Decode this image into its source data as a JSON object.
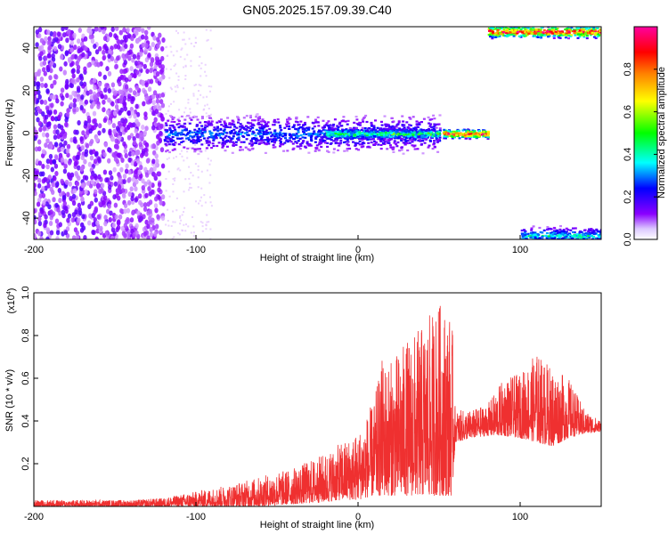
{
  "title": "GN05.2025.157.09.39.C40",
  "chart_data": [
    {
      "type": "heatmap",
      "xlabel": "Height of straight line (km)",
      "ylabel": "Frequency (Hz)",
      "xlim": [
        -200,
        150
      ],
      "ylim": [
        -50,
        50
      ],
      "x_ticks": [
        -200,
        -100,
        0,
        100
      ],
      "y_ticks": [
        -40,
        -20,
        0,
        20,
        40
      ],
      "grid": false,
      "colorbar": {
        "label": "Normalized spectral amplitude",
        "range": [
          0,
          1
        ],
        "ticks": [
          "0.0",
          "0.2",
          "0.4",
          "0.6",
          "0.8"
        ],
        "colormap": [
          "#ffffff",
          "#8a00ff",
          "#0000ff",
          "#00ffff",
          "#00ff00",
          "#ffff00",
          "#ff8000",
          "#ff0000",
          "#ff00a0"
        ]
      },
      "features": [
        {
          "x_range": [
            -200,
            -120
          ],
          "freq_range": [
            -50,
            50
          ],
          "amplitude": 0.12
        },
        {
          "x_range": [
            -120,
            50
          ],
          "freq_center": 0,
          "freq_halfwidth": 6,
          "amplitude": 0.3
        },
        {
          "x_range": [
            -20,
            50
          ],
          "freq_center": 0,
          "freq_halfwidth": 2,
          "amplitude": 0.5
        },
        {
          "x_range": [
            52,
            80
          ],
          "freq_center": 0,
          "freq_halfwidth": 1.5,
          "amplitude": 0.9
        },
        {
          "x_range": [
            80,
            150
          ],
          "freq_center": 48,
          "freq_halfwidth": 2,
          "amplitude": 0.9
        },
        {
          "x_range": [
            100,
            150
          ],
          "freq_center": -48,
          "freq_halfwidth": 3,
          "amplitude": 0.4
        }
      ]
    },
    {
      "type": "line",
      "xlabel": "Height of straight line (km)",
      "ylabel": "SNR (10 * v/v)",
      "y_multiplier": "(x10",
      "y_multiplier_exp": "4",
      "y_multiplier_close": ")",
      "xlim": [
        -200,
        150
      ],
      "ylim": [
        0,
        1.0
      ],
      "x_ticks": [
        -200,
        -100,
        0,
        100
      ],
      "y_ticks": [
        "0.2",
        "0.4",
        "0.6",
        "0.8",
        "1.0"
      ],
      "color": "#ef3030",
      "grid": false,
      "envelope": {
        "x": [
          -200,
          -180,
          -160,
          -140,
          -120,
          -100,
          -80,
          -60,
          -40,
          -20,
          -10,
          0,
          10,
          15,
          20,
          30,
          40,
          50,
          55,
          58,
          60,
          70,
          80,
          90,
          100,
          110,
          120,
          130,
          140,
          150
        ],
        "low": [
          0.0,
          0.0,
          0.0,
          0.0,
          0.0,
          0.0,
          0.0,
          0.0,
          0.01,
          0.02,
          0.03,
          0.03,
          0.05,
          0.05,
          0.05,
          0.05,
          0.05,
          0.05,
          0.05,
          0.05,
          0.3,
          0.32,
          0.33,
          0.33,
          0.32,
          0.3,
          0.28,
          0.32,
          0.34,
          0.35
        ],
        "high": [
          0.03,
          0.03,
          0.03,
          0.03,
          0.04,
          0.07,
          0.1,
          0.14,
          0.18,
          0.25,
          0.3,
          0.35,
          0.5,
          0.7,
          0.68,
          0.78,
          0.85,
          0.96,
          0.93,
          0.88,
          0.45,
          0.45,
          0.48,
          0.6,
          0.62,
          0.72,
          0.65,
          0.6,
          0.45,
          0.4
        ]
      }
    }
  ]
}
